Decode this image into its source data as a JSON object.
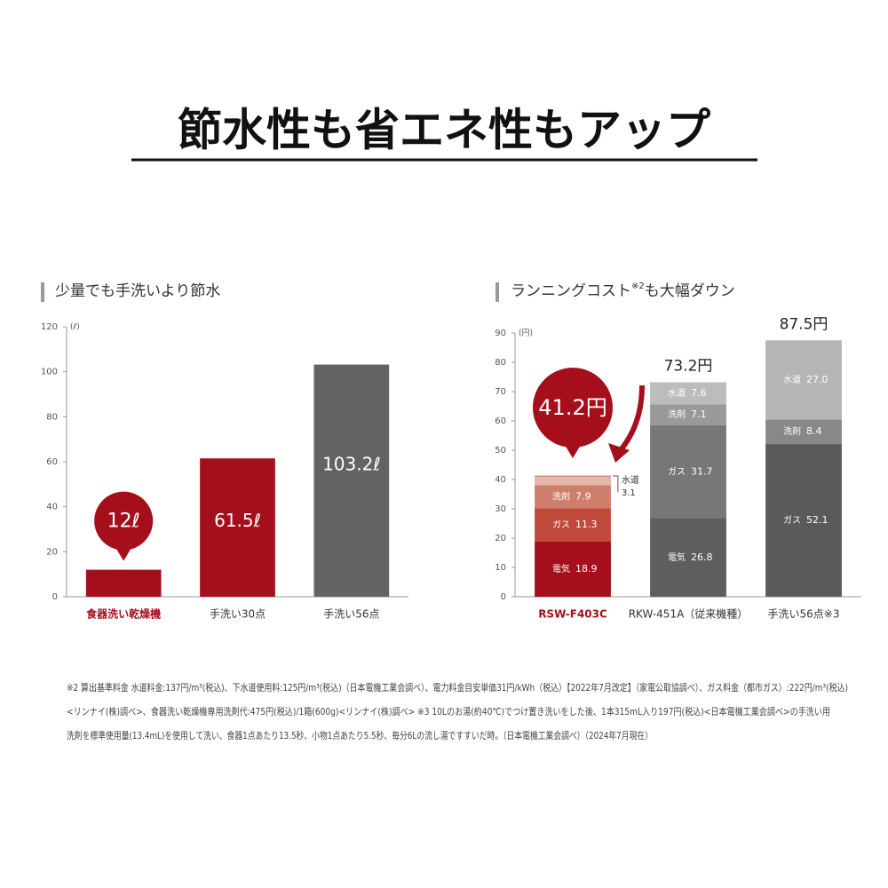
{
  "title": "節水性も省エネ性もアップ",
  "footnotes": [
    "※2 算出基準料金 水道料金:137円/m³(税込)、下水道使用料:125円/m³(税込)（日本電機工業会調べ）、電力料金目安単価31円/kWh（税込）【2022年7月改定】（家電公取協調べ）、ガス料金（都市ガス）:222円/m³(税込)",
    "<リンナイ(株)調べ>、食器洗い乾燥機専用洗剤代:475円(税込)/1箱(600g)<リンナイ(株)調べ> ※3 10Lのお湯(約40℃)でつけ置き洗いをした後、1本315mL入り197円(税込)<日本電機工業会調べ>の手洗い用",
    "洗剤を標準使用量(13.4mL)を使用して洗い、食器1点あたり13.5秒、小物1点あたり5.5秒、毎分6Lの流し湯ですすいだ時。（日本電機工業会調べ）（2024年7月現在）"
  ],
  "chart_data": [
    {
      "type": "bar",
      "title": [
        "少量でも手洗いより節水"
      ],
      "y_unit": "(ℓ)",
      "categories": [
        "食器洗い乾燥機",
        "手洗い30点",
        "手洗い56点"
      ],
      "values": [
        12,
        61.5,
        103.2
      ],
      "value_labels": [
        "12ℓ",
        "61.5ℓ",
        "103.2ℓ"
      ],
      "colors": [
        "#a50f1c",
        "#a50f1c",
        "#636363"
      ],
      "ylim": [
        0,
        120
      ],
      "yticks": [
        0,
        20,
        40,
        60,
        80,
        100,
        120
      ],
      "callout_index": 0,
      "highlight_index": 0,
      "highlight_color": "#a50f1c"
    },
    {
      "type": "stacked_bar",
      "title": [
        "ランニングコスト",
        "※2",
        "も大幅ダウン"
      ],
      "y_unit": "(円)",
      "categories": [
        "RSW-F403C",
        "RKW-451A（従来機種）",
        "手洗い56点※3"
      ],
      "series": [
        {
          "name": "電気",
          "values": [
            18.9,
            26.8,
            null
          ],
          "colors": [
            "#a50f1c",
            "#5e5e5e",
            null
          ]
        },
        {
          "name": "ガス",
          "values": [
            11.3,
            31.7,
            52.1
          ],
          "colors": [
            "#bf4a3c",
            "#777777",
            "#5a5a5a"
          ]
        },
        {
          "name": "洗剤",
          "values": [
            7.9,
            7.1,
            8.4
          ],
          "colors": [
            "#cf7e6c",
            "#999999",
            "#888888"
          ]
        },
        {
          "name": "水道",
          "values": [
            3.1,
            7.6,
            27
          ],
          "value_labels": [
            "3.1",
            "7.6",
            "27.0"
          ],
          "colors": [
            "#e3b7a9",
            "#bcbcbc",
            "#b5b5b5"
          ]
        }
      ],
      "totals": [
        41.2,
        73.2,
        87.5
      ],
      "total_labels": [
        "41.2円",
        "73.2円",
        "87.5円"
      ],
      "ylim": [
        0,
        90
      ],
      "yticks": [
        0,
        10,
        20,
        30,
        40,
        50,
        60,
        70,
        80,
        90
      ],
      "callout_index": 0,
      "highlight_index": 0,
      "highlight_color": "#a50f1c"
    }
  ]
}
